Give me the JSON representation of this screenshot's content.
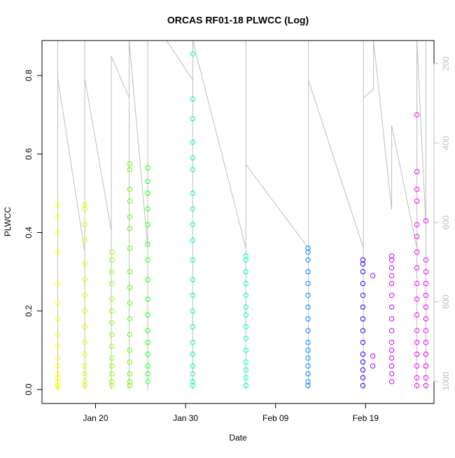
{
  "chart_data": {
    "type": "scatter",
    "title": "ORCAS RF01-18 PLWCC (Log)",
    "xlabel": "Date",
    "ylabel": "PLWCC",
    "xlim": [
      14.05,
      57.6
    ],
    "xticks": [
      {
        "value": 20,
        "label": "Jan 20"
      },
      {
        "value": 30,
        "label": "Jan 30"
      },
      {
        "value": 40,
        "label": "Feb 09"
      },
      {
        "value": 50,
        "label": "Feb 19"
      }
    ],
    "ylim": [
      -0.0356,
      0.889
    ],
    "yticks": [
      {
        "value": 0,
        "label": "0.0"
      },
      0.2,
      0.4,
      0.6,
      0.8
    ],
    "y2lim": [
      1056,
      142
    ],
    "y2ticks": [
      200,
      400,
      600,
      800,
      1000
    ],
    "series": [
      {
        "type": "line",
        "axis": "y2",
        "color": "#bebebe",
        "x": [
          15.8,
          15.8,
          15.8,
          18.8,
          18.8,
          18.8,
          18.8,
          21.75,
          21.75,
          21.75,
          23.73,
          23.73,
          23.73,
          25.8,
          25.8,
          25.8,
          27.9,
          30.8,
          30.8,
          30.8,
          36.7,
          36.7,
          36.7,
          36.7,
          43.65,
          43.65,
          43.65,
          43.65,
          49.76,
          49.76,
          49.76,
          49.76,
          50.88,
          50.88,
          52.9,
          52.9,
          55.7,
          55.7,
          55.7,
          56.7,
          56.7,
          56.7
        ],
        "values": [
          1021,
          142,
          237,
          674,
          1021,
          142,
          237,
          621,
          1021,
          181,
          286,
          1021,
          142,
          665,
          1021,
          142,
          142,
          242,
          1021,
          142,
          665,
          1021,
          142,
          454,
          665,
          1021,
          142,
          242,
          665,
          1021,
          142,
          286,
          265,
          142,
          568,
          357,
          665,
          1021,
          142,
          610,
          1021,
          142
        ]
      },
      {
        "color": "#ffff00",
        "x": [
          15.8,
          15.8,
          15.8,
          15.8,
          15.8,
          15.8,
          15.8,
          15.8,
          15.8,
          15.8,
          15.8,
          15.8,
          15.8,
          15.8,
          15.8,
          15.8
        ],
        "values": [
          0.47,
          0.44,
          0.4,
          0.35,
          0.27,
          0.22,
          0.18,
          0.14,
          0.11,
          0.08,
          0.06,
          0.04,
          0.03,
          0.02,
          0.01,
          0.005
        ]
      },
      {
        "color": "#d4ff00",
        "x": [
          18.8,
          18.8,
          18.8,
          18.8,
          18.8,
          18.8,
          18.8,
          18.8,
          18.8,
          18.8,
          18.8,
          18.8,
          18.8,
          18.8,
          18.8
        ],
        "values": [
          0.47,
          0.46,
          0.42,
          0.38,
          0.32,
          0.28,
          0.24,
          0.2,
          0.16,
          0.12,
          0.09,
          0.06,
          0.04,
          0.02,
          0.01
        ]
      },
      {
        "color": "#99ff00",
        "x": [
          21.8,
          21.8,
          21.8,
          21.8,
          21.8,
          21.8,
          21.8,
          21.8,
          21.8,
          21.8,
          21.8,
          21.8,
          21.8,
          21.8
        ],
        "values": [
          0.35,
          0.33,
          0.3,
          0.27,
          0.23,
          0.2,
          0.17,
          0.14,
          0.11,
          0.08,
          0.06,
          0.04,
          0.02,
          0.01
        ]
      },
      {
        "color": "#66ff00",
        "x": [
          23.8,
          23.8,
          23.8,
          23.8,
          23.8,
          23.8,
          23.8,
          23.8,
          23.8,
          23.8,
          23.8,
          23.8,
          23.8,
          23.8,
          23.8,
          23.8,
          23.8
        ],
        "values": [
          0.575,
          0.56,
          0.51,
          0.48,
          0.44,
          0.41,
          0.36,
          0.3,
          0.26,
          0.22,
          0.18,
          0.14,
          0.1,
          0.07,
          0.04,
          0.02,
          0.01
        ]
      },
      {
        "color": "#22ff22",
        "x": [
          25.8,
          25.8,
          25.8,
          25.8,
          25.8,
          25.8,
          25.8,
          25.8,
          25.8,
          25.8,
          25.8,
          25.8,
          25.8,
          25.8,
          25.8,
          25.8
        ],
        "values": [
          0.565,
          0.53,
          0.5,
          0.46,
          0.42,
          0.37,
          0.33,
          0.28,
          0.23,
          0.19,
          0.15,
          0.12,
          0.09,
          0.06,
          0.04,
          0.02
        ]
      },
      {
        "color": "#00ff88",
        "x": [
          30.8,
          30.8,
          30.8,
          30.8,
          30.8,
          30.8,
          30.8,
          30.8,
          30.8,
          30.8,
          30.8,
          30.8,
          30.8,
          30.8,
          30.8,
          30.8,
          30.8,
          30.8,
          30.8,
          30.8,
          30.8
        ],
        "values": [
          0.855,
          0.74,
          0.69,
          0.63,
          0.59,
          0.56,
          0.5,
          0.46,
          0.42,
          0.38,
          0.33,
          0.28,
          0.24,
          0.2,
          0.16,
          0.12,
          0.09,
          0.06,
          0.04,
          0.02,
          0.01
        ]
      },
      {
        "color": "#00ffcc",
        "x": [
          36.7,
          36.7,
          36.7,
          36.7,
          36.7,
          36.7,
          36.7,
          36.7,
          36.7,
          36.7,
          36.7,
          36.7,
          36.7,
          36.7
        ],
        "values": [
          0.34,
          0.33,
          0.3,
          0.27,
          0.24,
          0.21,
          0.19,
          0.16,
          0.13,
          0.1,
          0.07,
          0.05,
          0.03,
          0.01
        ]
      },
      {
        "color": "#0088ff",
        "x": [
          43.6,
          43.6,
          43.6,
          43.6,
          43.6,
          43.6,
          43.6,
          43.6,
          43.6,
          43.6,
          43.6,
          43.6,
          43.6,
          43.6,
          43.6,
          43.6
        ],
        "values": [
          0.36,
          0.35,
          0.33,
          0.3,
          0.27,
          0.24,
          0.21,
          0.18,
          0.15,
          0.12,
          0.1,
          0.08,
          0.06,
          0.04,
          0.02,
          0.01
        ]
      },
      {
        "color": "#3300ff",
        "x": [
          49.7,
          49.7,
          49.7,
          49.7,
          49.7,
          49.7,
          49.7,
          49.7,
          49.7,
          49.7,
          49.7,
          49.7,
          49.7,
          49.7
        ],
        "values": [
          0.33,
          0.32,
          0.3,
          0.27,
          0.24,
          0.21,
          0.18,
          0.15,
          0.12,
          0.09,
          0.07,
          0.05,
          0.03,
          0.01
        ]
      },
      {
        "color": "#9900ff",
        "x": [
          50.8,
          50.8,
          50.8
        ],
        "values": [
          0.29,
          0.085,
          0.06
        ]
      },
      {
        "color": "#cc00ff",
        "x": [
          52.9,
          52.9,
          52.9,
          52.9,
          52.9,
          52.9,
          52.9,
          52.9,
          52.9,
          52.9,
          52.9,
          52.9,
          52.9,
          52.9,
          52.9
        ],
        "values": [
          0.34,
          0.33,
          0.31,
          0.29,
          0.27,
          0.24,
          0.21,
          0.18,
          0.15,
          0.12,
          0.1,
          0.08,
          0.06,
          0.04,
          0.02
        ]
      },
      {
        "color": "#ff00ee",
        "x": [
          55.7,
          55.7,
          55.7,
          55.7,
          55.7,
          55.7,
          55.7,
          55.7,
          55.7,
          55.7,
          55.7,
          55.7,
          55.7,
          55.7,
          55.7,
          55.7,
          55.7
        ],
        "values": [
          0.7,
          0.555,
          0.51,
          0.48,
          0.42,
          0.39,
          0.35,
          0.31,
          0.27,
          0.23,
          0.19,
          0.15,
          0.12,
          0.09,
          0.06,
          0.03,
          0.01
        ]
      },
      {
        "color": "#ee00ff",
        "x": [
          56.7,
          56.7,
          56.7,
          56.7,
          56.7,
          56.7,
          56.7,
          56.7,
          56.7,
          56.7,
          56.7,
          56.7,
          56.7
        ],
        "values": [
          0.43,
          0.33,
          0.3,
          0.27,
          0.24,
          0.21,
          0.18,
          0.15,
          0.12,
          0.09,
          0.06,
          0.03,
          0.01
        ]
      }
    ]
  }
}
